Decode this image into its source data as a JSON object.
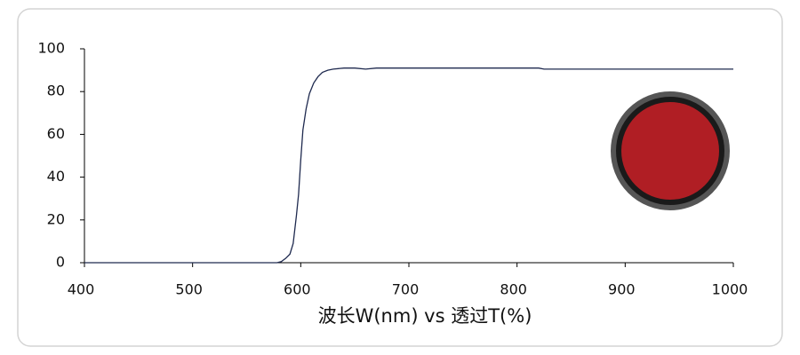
{
  "chart_data": {
    "type": "line",
    "x_label": "波长W(nm) vs 透过T(%)",
    "x": [
      400,
      578,
      582,
      586,
      590,
      593,
      596,
      598,
      600,
      602,
      605,
      608,
      612,
      616,
      620,
      625,
      630,
      640,
      650,
      660,
      670,
      700,
      800,
      820,
      825,
      900,
      1000
    ],
    "values": [
      0,
      0,
      0.5,
      2,
      4,
      9,
      22,
      32,
      48,
      62,
      72,
      79,
      84,
      87,
      89,
      90,
      90.5,
      91,
      91,
      90.5,
      91,
      91,
      91,
      91,
      90.5,
      90.5,
      90.5
    ],
    "color": "#1f2a4f",
    "xlim": [
      400,
      1000
    ],
    "xticks": [
      400,
      500,
      600,
      700,
      800,
      900,
      1000
    ],
    "ylim": [
      0,
      100
    ],
    "yticks": [
      0,
      20,
      40,
      60,
      80,
      100
    ]
  }
}
